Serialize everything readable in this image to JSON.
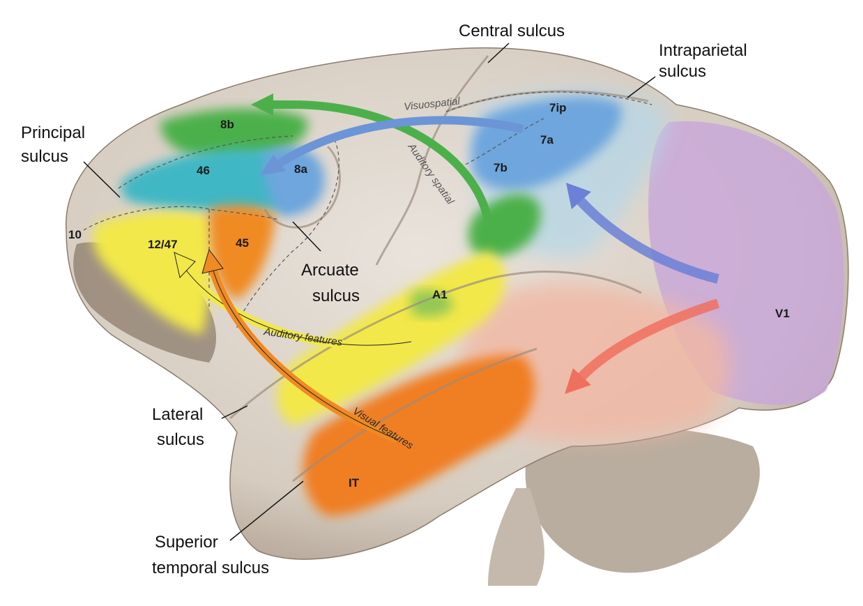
{
  "labels": {
    "central_sulcus": "Central sulcus",
    "intraparietal_1": "Intraparietal",
    "intraparietal_2": "sulcus",
    "principal_1": "Principal",
    "principal_2": "sulcus",
    "arcuate_1": "Arcuate",
    "arcuate_2": "sulcus",
    "lateral_1": "Lateral",
    "lateral_2": "sulcus",
    "sts_1": "Superior",
    "sts_2": "temporal sulcus"
  },
  "areas": {
    "a8b": "8b",
    "a46": "46",
    "a8a": "8a",
    "a10": "10",
    "a1247": "12/47",
    "a45": "45",
    "a7ip": "7ip",
    "a7a": "7a",
    "a7b": "7b",
    "aA1": "A1",
    "aV1": "V1",
    "aIT": "IT"
  },
  "pathways": {
    "visuospatial": "Visuospatial",
    "auditory_spatial": "Auditory spatial",
    "auditory_features": "Auditory features",
    "visual_features": "Visual features"
  },
  "colors": {
    "brain": "#d9cfc4",
    "visuospatial_arrow": "#6b95d6",
    "auditory_spatial_arrow": "#4cb04a",
    "auditory_features_arrow": "#f2e84a",
    "visual_features_arrow": "#f08a22",
    "v1_region": "#c9a8d8",
    "temporal_region": "#f2b7a3",
    "it_region": "#f07e20",
    "parietal_region": "#6ea6dd"
  }
}
